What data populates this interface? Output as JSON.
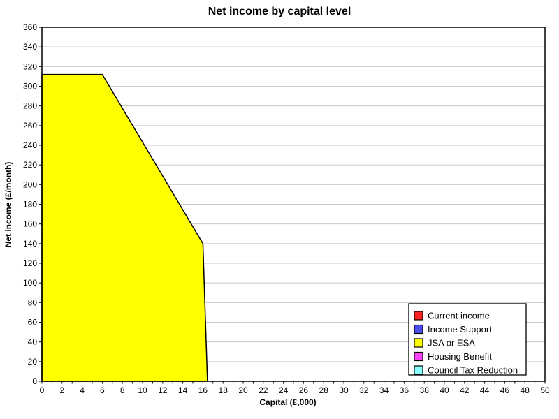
{
  "chart_data": {
    "type": "area",
    "title": "Net income by capital level",
    "xlabel": "Capital (£,000)",
    "ylabel": "Net income (£/month)",
    "xlim": [
      0,
      50
    ],
    "ylim": [
      0,
      360
    ],
    "x_minor_tick_step": 1,
    "x_label_step": 2,
    "y_tick_step": 20,
    "grid": "horizontal",
    "legend_position": "bottom-right",
    "colors": {
      "gridline": "#c9c9c9",
      "frame": "#000000",
      "outline": "#000000",
      "background": "#ffffff"
    },
    "series": [
      {
        "name": "Current income",
        "color": "#ff2222",
        "outline": []
      },
      {
        "name": "Income Support",
        "color": "#4d4dee",
        "outline": []
      },
      {
        "name": "JSA or ESA",
        "color": "#ffff00",
        "outline": [
          [
            0,
            0
          ],
          [
            0,
            312
          ],
          [
            6,
            312
          ],
          [
            16,
            140
          ],
          [
            16.45,
            0
          ]
        ]
      },
      {
        "name": "Housing Benefit",
        "color": "#ff44ff",
        "outline": []
      },
      {
        "name": "Council Tax Reduction",
        "color": "#88ffff",
        "outline": []
      }
    ]
  }
}
